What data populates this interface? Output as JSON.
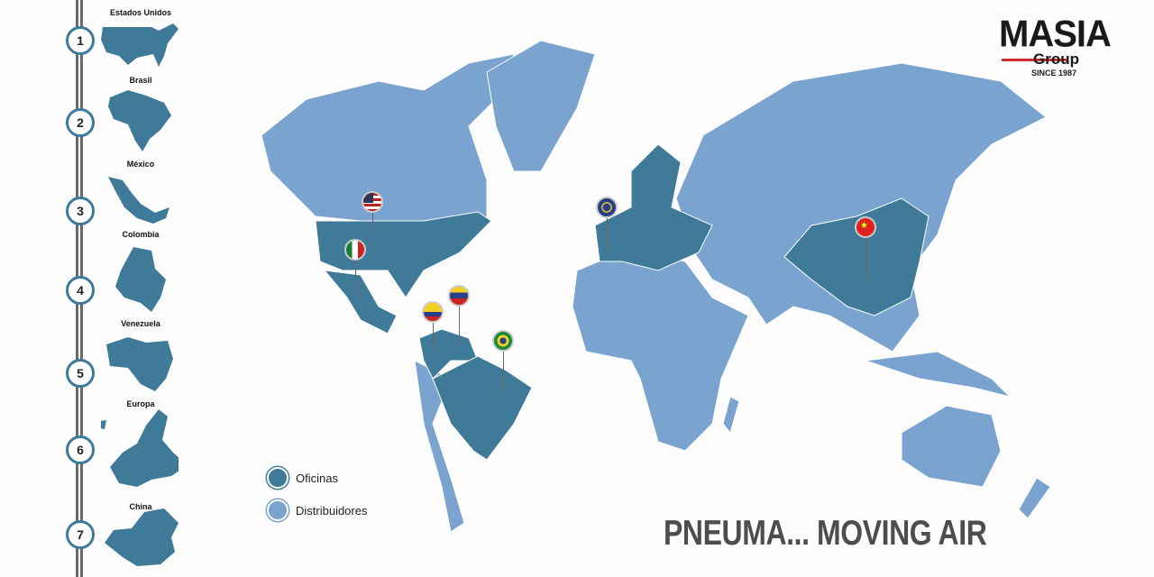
{
  "brand": {
    "name": "MASIA",
    "sub": "Group",
    "since": "SINCE 1987"
  },
  "tagline": "PNEUMA... MOVING AIR",
  "legend": {
    "offices": "Oficinas",
    "distributors": "Distribuidores"
  },
  "colors": {
    "offices": "#3f7a99",
    "distributors": "#7aa3cf",
    "accent": "#d12b2b"
  },
  "locations": [
    {
      "num": "1",
      "name": "Estados Unidos"
    },
    {
      "num": "2",
      "name": "Brasil"
    },
    {
      "num": "3",
      "name": "México"
    },
    {
      "num": "4",
      "name": "Colombia"
    },
    {
      "num": "5",
      "name": "Venezuela"
    },
    {
      "num": "6",
      "name": "Europa"
    },
    {
      "num": "7",
      "name": "China"
    }
  ]
}
